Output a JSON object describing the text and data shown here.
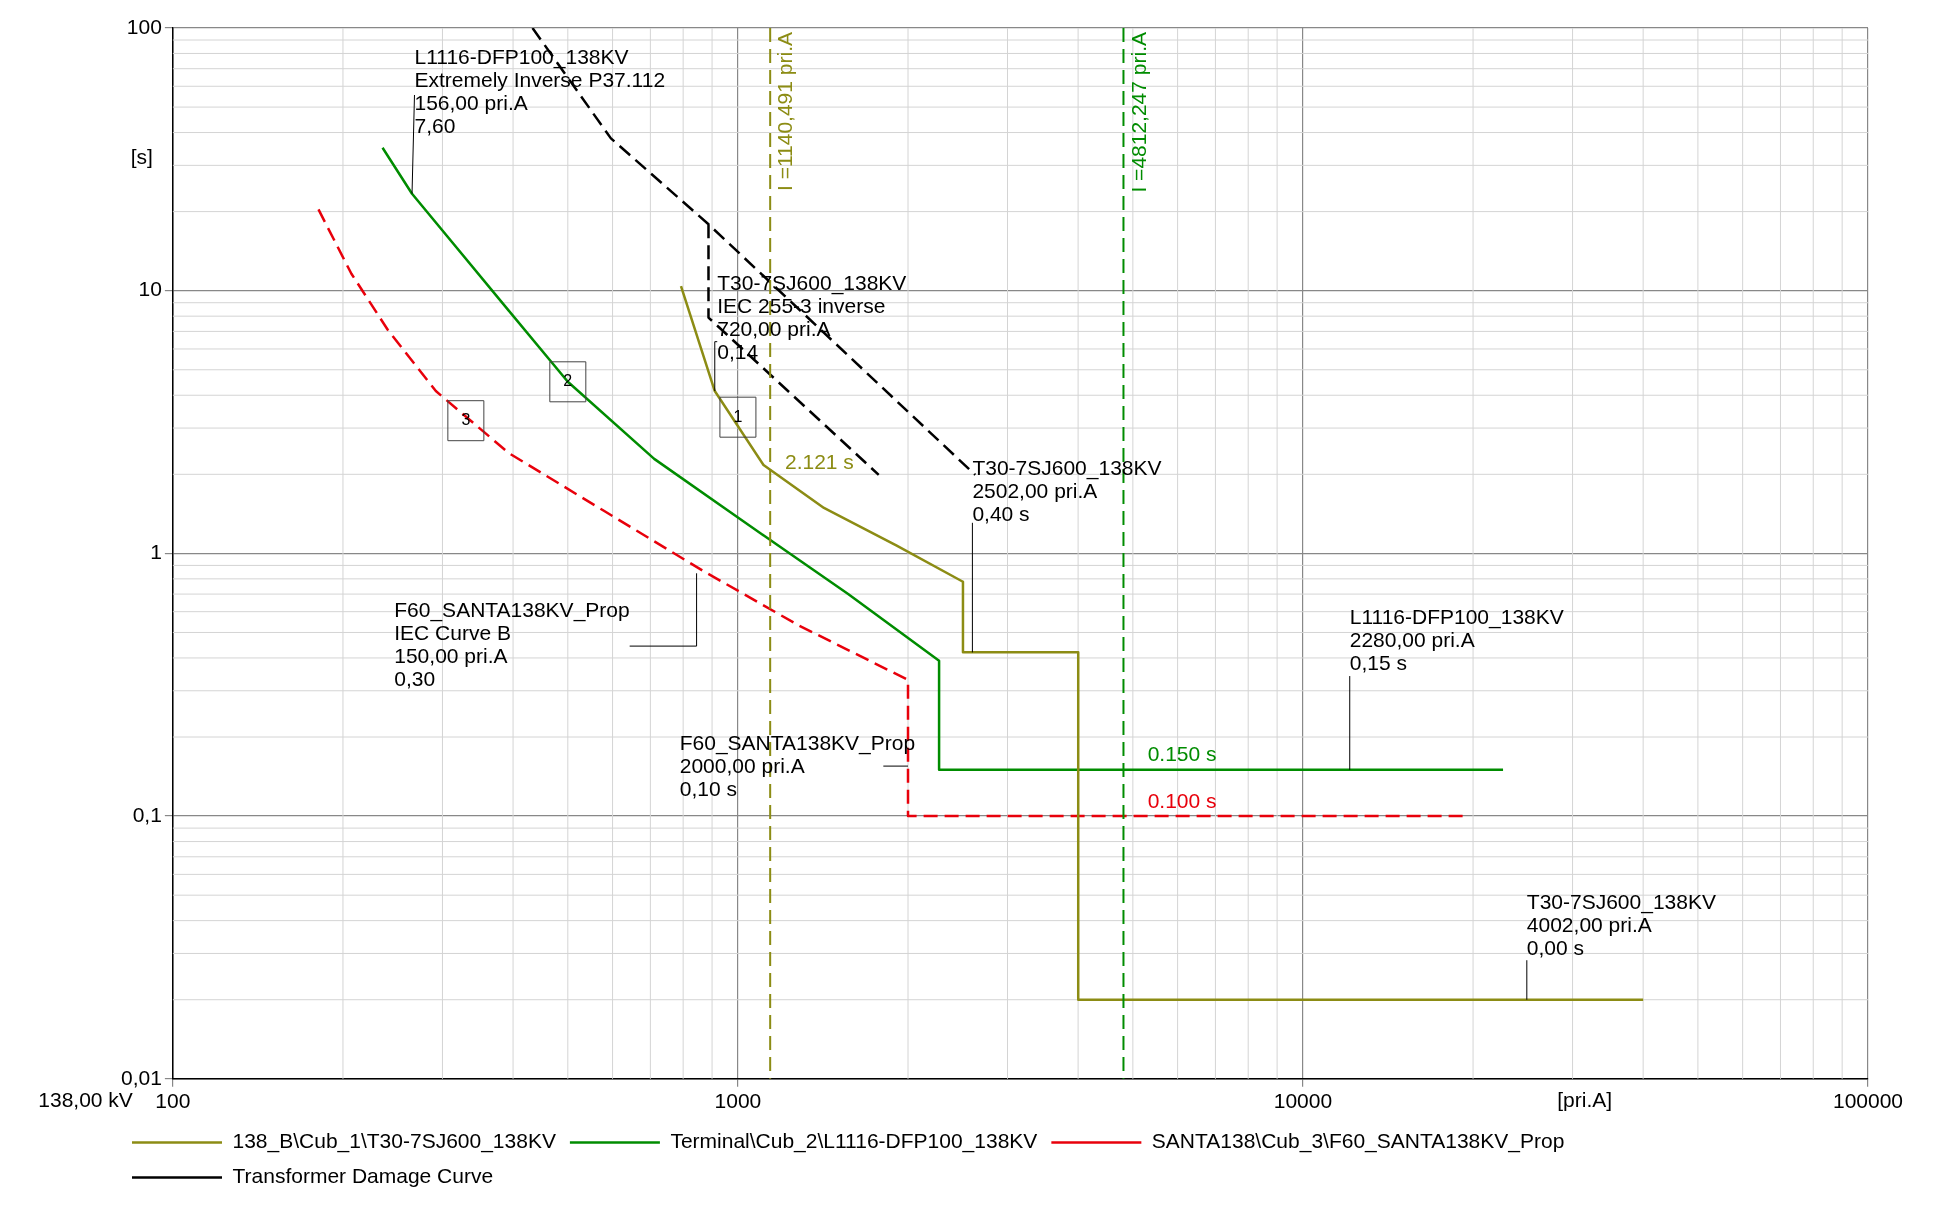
{
  "chart_data": {
    "type": "line",
    "xlabel": "[pri.A]",
    "ylabel": "[s]",
    "log": "xy",
    "grid": true,
    "legend": "bottom",
    "marker": "none",
    "xlim": [
      100,
      100000
    ],
    "xticks": [
      100,
      1000,
      10000,
      100000
    ],
    "ylim": [
      0.01,
      100
    ],
    "yticks": [
      {
        "value": 0.01,
        "label": "0,01"
      },
      {
        "value": 0.1,
        "label": "0,1"
      },
      1,
      10,
      100
    ],
    "series": [
      {
        "name": "138_B\\Cub_1\\T30-7SJ600_138KV",
        "color": "#8c8c14",
        "line_style": "solid",
        "x": [
          793,
          910,
          1110,
          1420,
          1910,
          2502,
          2502,
          4002,
          4002,
          40000
        ],
        "values": [
          10.4,
          4.15,
          2.17,
          1.49,
          1.07,
          0.78,
          0.42,
          0.42,
          0.02,
          0.02
        ]
      },
      {
        "name": "Terminal\\Cub_2\\L1116-DFP100_138KV",
        "color": "#008c00",
        "line_style": "solid",
        "x": [
          235,
          265,
          393,
          500,
          711,
          1057,
          1567,
          2270,
          2270,
          22600
        ],
        "values": [
          35,
          23.4,
          8.4,
          4.5,
          2.29,
          1.26,
          0.7,
          0.39,
          0.15,
          0.15
        ]
      },
      {
        "name": "SANTA138\\Cub_3\\F60_SANTA138KV_Prop",
        "color": "#e8000b",
        "line_style": "dashed",
        "x": [
          181,
          207,
          240,
          292,
          393,
          583,
          866,
          1285,
          2000,
          2000,
          19500
        ],
        "values": [
          20.4,
          11.6,
          7.1,
          4.15,
          2.41,
          1.44,
          0.86,
          0.53,
          0.33,
          0.1,
          0.1
        ]
      },
      {
        "name": "Transformer Damage Curve",
        "color": "#000000",
        "line_style": "dashed",
        "x": [
          433,
          596,
          887,
          2630,
          null,
          887,
          887,
          1775
        ],
        "values": [
          100,
          38,
          17.9,
          1.99,
          null,
          17.9,
          7.9,
          1.99
        ]
      }
    ],
    "ref_lines": [
      {
        "axis": "x",
        "value": 1140.491,
        "label": "I =1140,491 pri.A",
        "color": "#8c8c14",
        "line_style": "dashed"
      },
      {
        "axis": "x",
        "value": 4812.247,
        "label": "I =4812,247 pri.A",
        "color": "#008c00",
        "line_style": "dashed"
      }
    ],
    "annotations": [
      {
        "text": "L1116-DFP100_138KV\nExtremely Inverse P37.112\n156,00 pri.A\n7,60",
        "x": 265,
        "y": 23.4
      },
      {
        "text": "T30-7SJ600_138KV\nIEC 255-3 inverse\n720,00 pri.A\n0,14",
        "x": 910,
        "y": 4.15
      },
      {
        "text": "T30-7SJ600_138KV\n2502,00 pri.A\n0,40 s",
        "x": 2600,
        "y": 0.42
      },
      {
        "text": "F60_SANTA138KV_Prop\nIEC Curve B\n150,00 pri.A\n0,30",
        "x": 845,
        "y": 0.84
      },
      {
        "text": "F60_SANTA138KV_Prop\n2000,00 pri.A\n0,10 s",
        "x": 2000,
        "y": 0.155
      },
      {
        "text": "L1116-DFP100_138KV\n2280,00 pri.A\n0,15 s",
        "x": 12100,
        "y": 0.15
      },
      {
        "text": "T30-7SJ600_138KV\n4002,00 pri.A\n0,00 s",
        "x": 24900,
        "y": 0.02
      },
      {
        "text": "2.121 s",
        "x": 1140.491,
        "y": 2.121
      },
      {
        "text": "0.150 s",
        "x": 5000,
        "y": 0.15
      },
      {
        "text": "0.100 s",
        "x": 5000,
        "y": 0.1
      },
      {
        "text": "1",
        "x": 1000,
        "y": 3.3
      },
      {
        "text": "2",
        "x": 500,
        "y": 4.5
      },
      {
        "text": "3",
        "x": 330,
        "y": 3.2
      },
      "138,00 kV"
    ]
  }
}
